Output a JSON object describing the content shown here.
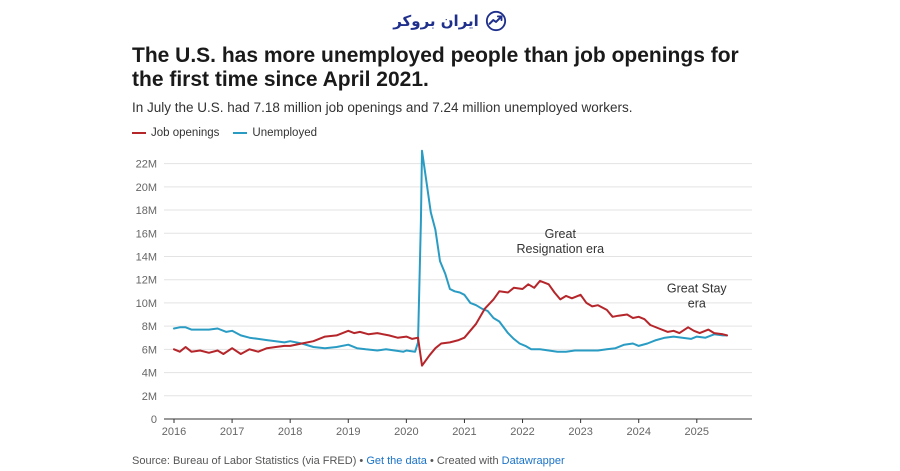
{
  "brand": {
    "name": "ایران بروکر",
    "logo_icon": "trend-check-icon"
  },
  "chart_data": {
    "type": "line",
    "title": "The U.S. has more unemployed people than job openings for the first time since April 2021.",
    "subtitle": "In July the U.S. had 7.18 million job openings and 7.24 million unemployed workers.",
    "xlabel": "",
    "ylabel": "",
    "x_ticks": [
      "2016",
      "2017",
      "2018",
      "2019",
      "2020",
      "2021",
      "2022",
      "2023",
      "2024",
      "2025"
    ],
    "y_ticks": [
      "0",
      "2M",
      "4M",
      "6M",
      "8M",
      "10M",
      "12M",
      "14M",
      "16M",
      "18M",
      "20M",
      "22M"
    ],
    "ylim": [
      0,
      23
    ],
    "xlim": [
      2016,
      2025.6
    ],
    "grid": true,
    "series": [
      {
        "name": "Job openings",
        "color": "#b5262b",
        "points": [
          [
            2016.0,
            6.0
          ],
          [
            2016.1,
            5.8
          ],
          [
            2016.2,
            6.2
          ],
          [
            2016.3,
            5.8
          ],
          [
            2016.45,
            5.9
          ],
          [
            2016.6,
            5.7
          ],
          [
            2016.75,
            5.9
          ],
          [
            2016.85,
            5.6
          ],
          [
            2017.0,
            6.1
          ],
          [
            2017.15,
            5.6
          ],
          [
            2017.3,
            6.0
          ],
          [
            2017.45,
            5.8
          ],
          [
            2017.6,
            6.1
          ],
          [
            2017.75,
            6.2
          ],
          [
            2017.9,
            6.3
          ],
          [
            2018.0,
            6.3
          ],
          [
            2018.2,
            6.5
          ],
          [
            2018.4,
            6.7
          ],
          [
            2018.6,
            7.1
          ],
          [
            2018.8,
            7.2
          ],
          [
            2019.0,
            7.6
          ],
          [
            2019.1,
            7.4
          ],
          [
            2019.2,
            7.5
          ],
          [
            2019.35,
            7.3
          ],
          [
            2019.5,
            7.4
          ],
          [
            2019.7,
            7.2
          ],
          [
            2019.85,
            7.0
          ],
          [
            2020.0,
            7.1
          ],
          [
            2020.1,
            6.9
          ],
          [
            2020.2,
            7.0
          ],
          [
            2020.27,
            4.6
          ],
          [
            2020.4,
            5.5
          ],
          [
            2020.5,
            6.1
          ],
          [
            2020.6,
            6.5
          ],
          [
            2020.75,
            6.6
          ],
          [
            2020.9,
            6.8
          ],
          [
            2021.0,
            7.0
          ],
          [
            2021.2,
            8.2
          ],
          [
            2021.35,
            9.5
          ],
          [
            2021.5,
            10.3
          ],
          [
            2021.6,
            11.0
          ],
          [
            2021.75,
            10.9
          ],
          [
            2021.85,
            11.3
          ],
          [
            2022.0,
            11.2
          ],
          [
            2022.1,
            11.6
          ],
          [
            2022.2,
            11.3
          ],
          [
            2022.3,
            11.9
          ],
          [
            2022.45,
            11.6
          ],
          [
            2022.55,
            10.9
          ],
          [
            2022.65,
            10.3
          ],
          [
            2022.75,
            10.6
          ],
          [
            2022.85,
            10.4
          ],
          [
            2023.0,
            10.7
          ],
          [
            2023.1,
            10.0
          ],
          [
            2023.2,
            9.7
          ],
          [
            2023.3,
            9.8
          ],
          [
            2023.45,
            9.4
          ],
          [
            2023.55,
            8.8
          ],
          [
            2023.65,
            8.9
          ],
          [
            2023.8,
            9.0
          ],
          [
            2023.9,
            8.7
          ],
          [
            2024.0,
            8.8
          ],
          [
            2024.1,
            8.6
          ],
          [
            2024.2,
            8.1
          ],
          [
            2024.35,
            7.8
          ],
          [
            2024.5,
            7.5
          ],
          [
            2024.6,
            7.6
          ],
          [
            2024.7,
            7.4
          ],
          [
            2024.85,
            7.9
          ],
          [
            2024.95,
            7.6
          ],
          [
            2025.05,
            7.4
          ],
          [
            2025.2,
            7.7
          ],
          [
            2025.3,
            7.4
          ],
          [
            2025.45,
            7.3
          ],
          [
            2025.52,
            7.2
          ]
        ]
      },
      {
        "name": "Unemployed",
        "color": "#2a9cc4",
        "points": [
          [
            2016.0,
            7.8
          ],
          [
            2016.1,
            7.9
          ],
          [
            2016.2,
            7.9
          ],
          [
            2016.3,
            7.7
          ],
          [
            2016.45,
            7.7
          ],
          [
            2016.6,
            7.7
          ],
          [
            2016.75,
            7.8
          ],
          [
            2016.9,
            7.5
          ],
          [
            2017.0,
            7.6
          ],
          [
            2017.15,
            7.2
          ],
          [
            2017.3,
            7.0
          ],
          [
            2017.45,
            6.9
          ],
          [
            2017.6,
            6.8
          ],
          [
            2017.75,
            6.7
          ],
          [
            2017.9,
            6.6
          ],
          [
            2018.0,
            6.7
          ],
          [
            2018.2,
            6.5
          ],
          [
            2018.4,
            6.2
          ],
          [
            2018.6,
            6.1
          ],
          [
            2018.8,
            6.2
          ],
          [
            2019.0,
            6.4
          ],
          [
            2019.15,
            6.1
          ],
          [
            2019.3,
            6.0
          ],
          [
            2019.5,
            5.9
          ],
          [
            2019.65,
            6.0
          ],
          [
            2019.8,
            5.9
          ],
          [
            2019.95,
            5.8
          ],
          [
            2020.0,
            5.9
          ],
          [
            2020.15,
            5.8
          ],
          [
            2020.2,
            6.6
          ],
          [
            2020.25,
            17.0
          ],
          [
            2020.27,
            23.1
          ],
          [
            2020.33,
            21.0
          ],
          [
            2020.42,
            17.8
          ],
          [
            2020.5,
            16.3
          ],
          [
            2020.58,
            13.6
          ],
          [
            2020.67,
            12.5
          ],
          [
            2020.75,
            11.2
          ],
          [
            2020.83,
            11.0
          ],
          [
            2020.92,
            10.9
          ],
          [
            2021.0,
            10.7
          ],
          [
            2021.1,
            10.0
          ],
          [
            2021.2,
            9.8
          ],
          [
            2021.3,
            9.5
          ],
          [
            2021.4,
            9.3
          ],
          [
            2021.5,
            8.7
          ],
          [
            2021.6,
            8.4
          ],
          [
            2021.75,
            7.4
          ],
          [
            2021.85,
            6.9
          ],
          [
            2021.95,
            6.5
          ],
          [
            2022.05,
            6.3
          ],
          [
            2022.15,
            6.0
          ],
          [
            2022.3,
            6.0
          ],
          [
            2022.45,
            5.9
          ],
          [
            2022.6,
            5.8
          ],
          [
            2022.75,
            5.8
          ],
          [
            2022.9,
            5.9
          ],
          [
            2023.0,
            5.9
          ],
          [
            2023.15,
            5.9
          ],
          [
            2023.3,
            5.9
          ],
          [
            2023.45,
            6.0
          ],
          [
            2023.6,
            6.1
          ],
          [
            2023.75,
            6.4
          ],
          [
            2023.9,
            6.5
          ],
          [
            2024.0,
            6.3
          ],
          [
            2024.15,
            6.5
          ],
          [
            2024.3,
            6.8
          ],
          [
            2024.45,
            7.0
          ],
          [
            2024.6,
            7.1
          ],
          [
            2024.75,
            7.0
          ],
          [
            2024.9,
            6.9
          ],
          [
            2025.0,
            7.1
          ],
          [
            2025.15,
            7.0
          ],
          [
            2025.3,
            7.3
          ],
          [
            2025.45,
            7.2
          ],
          [
            2025.52,
            7.2
          ]
        ]
      }
    ],
    "annotations": [
      {
        "lines": [
          "Great",
          "Resignation era"
        ],
        "x": 2022.65,
        "y": 15.6
      },
      {
        "lines": [
          "Great Stay",
          "era"
        ],
        "x": 2025.0,
        "y": 10.9
      }
    ]
  },
  "footer": {
    "source": "Source: Bureau of Labor Statistics (via FRED)",
    "sep1": " • ",
    "get_data": "Get the data",
    "sep2": " • Created with ",
    "tool": "Datawrapper"
  }
}
